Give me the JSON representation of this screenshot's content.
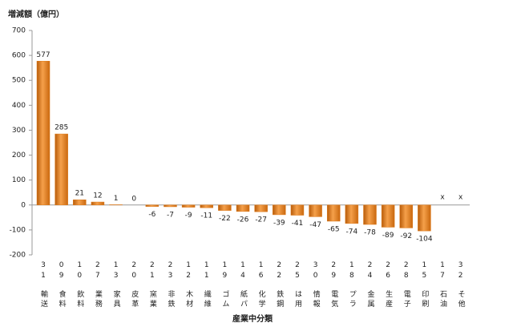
{
  "chart_data": {
    "type": "bar",
    "y_axis_title": "増減額（億円）",
    "x_axis_title": "産業中分類",
    "category_codes": [
      "31",
      "09",
      "10",
      "27",
      "13",
      "20",
      "21",
      "23",
      "12",
      "11",
      "19",
      "14",
      "16",
      "22",
      "25",
      "30",
      "29",
      "18",
      "24",
      "26",
      "28",
      "15",
      "17",
      "32"
    ],
    "categories": [
      "輸送",
      "食料",
      "飲料",
      "業務",
      "家具",
      "皮革",
      "窯業",
      "非鉄",
      "木材",
      "繊維",
      "ゴム",
      "紙パ",
      "化学",
      "鉄鋼",
      "は用",
      "情報",
      "電気",
      "プラ",
      "金属",
      "生産",
      "電子",
      "印刷",
      "石油",
      "そ他"
    ],
    "values": [
      577,
      285,
      21,
      12,
      1,
      0,
      -6,
      -7,
      -9,
      -11,
      -22,
      -26,
      -27,
      -39,
      -41,
      -47,
      -65,
      -74,
      -78,
      -89,
      -92,
      -104,
      null,
      null
    ],
    "value_labels": [
      null,
      null,
      null,
      null,
      null,
      null,
      null,
      null,
      null,
      null,
      null,
      null,
      null,
      null,
      null,
      null,
      null,
      null,
      null,
      null,
      null,
      null,
      "x",
      "x"
    ],
    "color": "#e07b1a",
    "ylim": [
      -200,
      700
    ],
    "yticks": [
      -200,
      -100,
      0,
      100,
      200,
      300,
      400,
      500,
      600,
      700
    ]
  }
}
